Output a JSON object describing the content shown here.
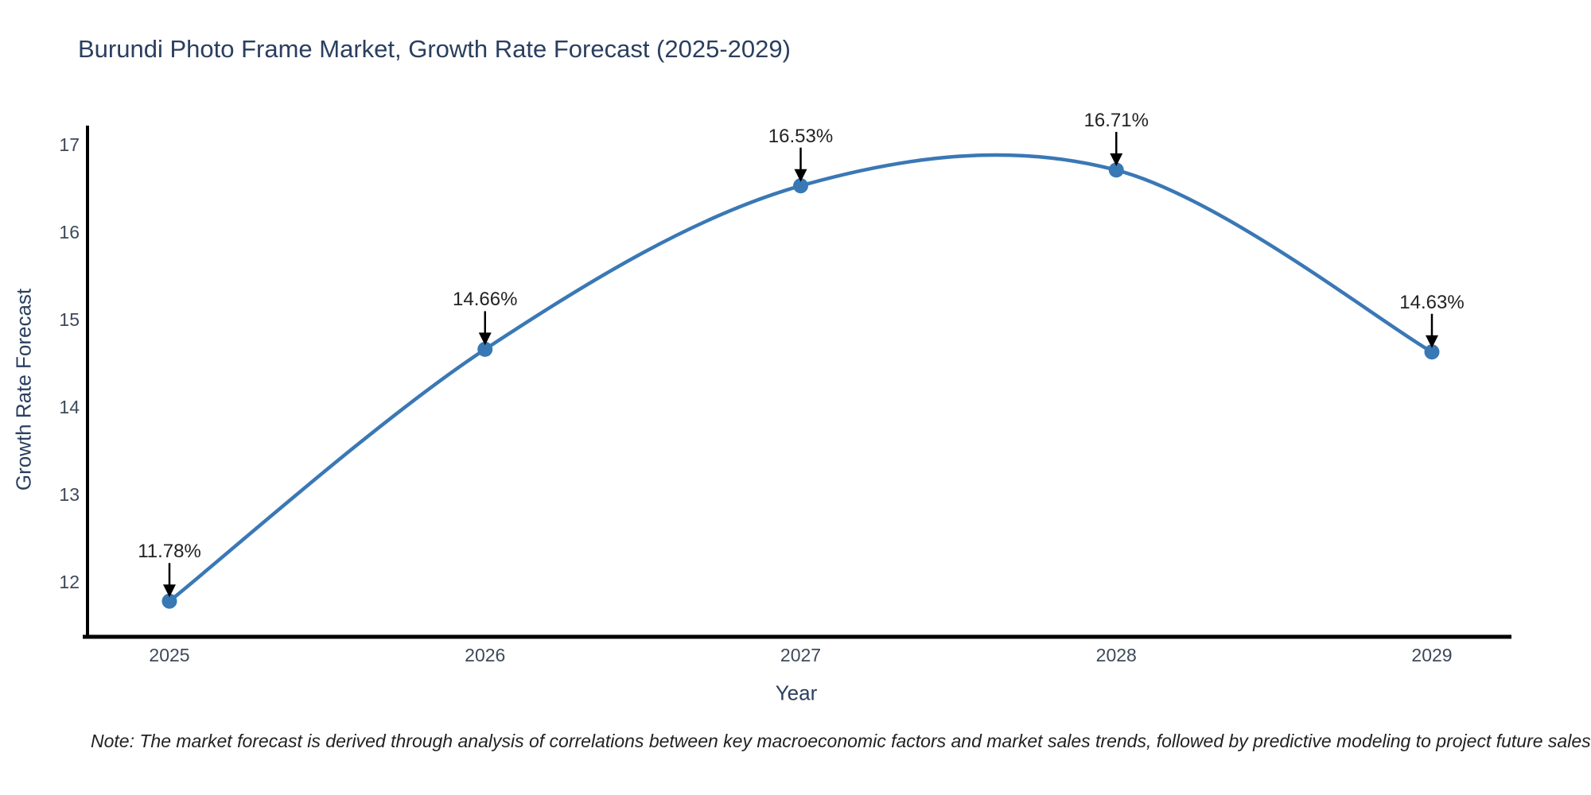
{
  "title": "Burundi Photo Frame Market, Growth Rate Forecast (2025-2029)",
  "note": "Note: The market forecast is derived through analysis of correlations between key macroeconomic factors and market sales trends, followed by predictive modeling to project future sales.",
  "colors": {
    "line": "#3a78b5",
    "marker": "#3878b4",
    "axis": "#000000",
    "arrow": "#000000",
    "title_text": "#2a3f5f",
    "tick_text": "#3e4959",
    "background": "#ffffff"
  },
  "chart_data": {
    "type": "line",
    "line_shape": "spline",
    "grid": false,
    "legend": false,
    "title": "Burundi Photo Frame Market, Growth Rate Forecast (2025-2029)",
    "xlabel": "Year",
    "ylabel": "Growth Rate Forecast",
    "categories": [
      2025,
      2026,
      2027,
      2028,
      2029
    ],
    "values": [
      11.78,
      14.66,
      16.53,
      16.71,
      14.63
    ],
    "labels": [
      "11.78%",
      "14.66%",
      "16.53%",
      "16.71%",
      "14.63%"
    ],
    "yticks": [
      17,
      16,
      15,
      14,
      13,
      12
    ],
    "ylim": [
      11.37,
      17.2
    ],
    "annotation_style": "black arrow pointing down to each marker"
  }
}
